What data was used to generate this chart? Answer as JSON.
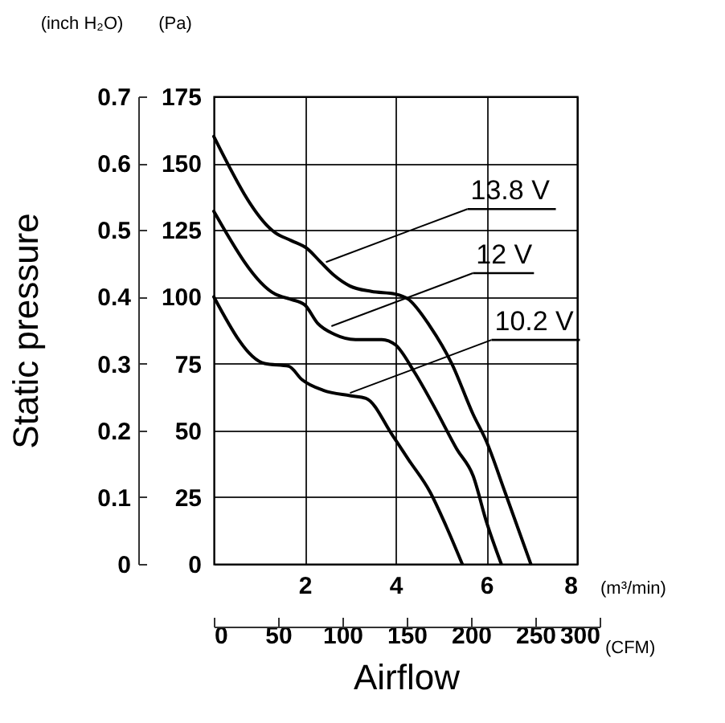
{
  "chart_data": {
    "type": "line",
    "xlabel": "Airflow",
    "xlim": [
      0,
      8
    ],
    "xticks": [
      2,
      4,
      6,
      8
    ],
    "ylim": [
      0,
      175
    ],
    "yticks": [
      0,
      25,
      50,
      75,
      100,
      125,
      150,
      175
    ],
    "y2lim": [
      0,
      0.7
    ],
    "y2ticks": [
      {
        "value": 0,
        "label": "0"
      },
      0.1,
      0.2,
      0.3,
      0.4,
      0.5,
      0.6,
      0.7
    ],
    "y2label": "Static pressure",
    "x2lim": [
      0,
      300
    ],
    "x2ticks": [
      0,
      50,
      100,
      150,
      200,
      250,
      300
    ],
    "x2label": "(CFM)",
    "grid": true,
    "series": [
      {
        "color": "#000000",
        "x": [
          0,
          1.35,
          1.71,
          2.06,
          2.35,
          2.65,
          3.0,
          3.47,
          4.0,
          4.29,
          4.76,
          5.24,
          5.71,
          6.0,
          6.41,
          6.98
        ],
        "values": [
          160,
          124,
          121,
          118,
          113,
          108,
          104,
          102,
          101,
          99,
          89,
          75,
          56,
          46,
          27,
          0
        ]
      },
      {
        "color": "#000000",
        "x": [
          0,
          1.35,
          1.71,
          2.0,
          2.29,
          2.65,
          3.12,
          3.7,
          4.0,
          4.41,
          4.88,
          5.35,
          5.71,
          6.0,
          6.33
        ],
        "values": [
          132,
          101,
          99,
          97,
          90,
          86,
          84,
          84,
          82,
          72,
          58,
          43,
          33,
          16,
          0
        ]
      },
      {
        "color": "#000000",
        "x": [
          0,
          1.12,
          1.65,
          1.94,
          2.41,
          3.0,
          3.35,
          3.94,
          4.29,
          4.76,
          5.12,
          5.47
        ],
        "values": [
          100,
          75,
          74,
          69,
          65,
          63,
          62,
          48,
          39,
          27,
          14,
          0
        ]
      }
    ],
    "annotations": [
      "(Pa)",
      "(m³/min)",
      "(inch H₂O)",
      {
        "text": "13.8 V",
        "x": 2.47,
        "y": 113
      },
      {
        "text": "12 V",
        "x": 2.59,
        "y": 89
      },
      {
        "text": "10.2 V",
        "x": 3.0,
        "y": 64
      }
    ]
  }
}
